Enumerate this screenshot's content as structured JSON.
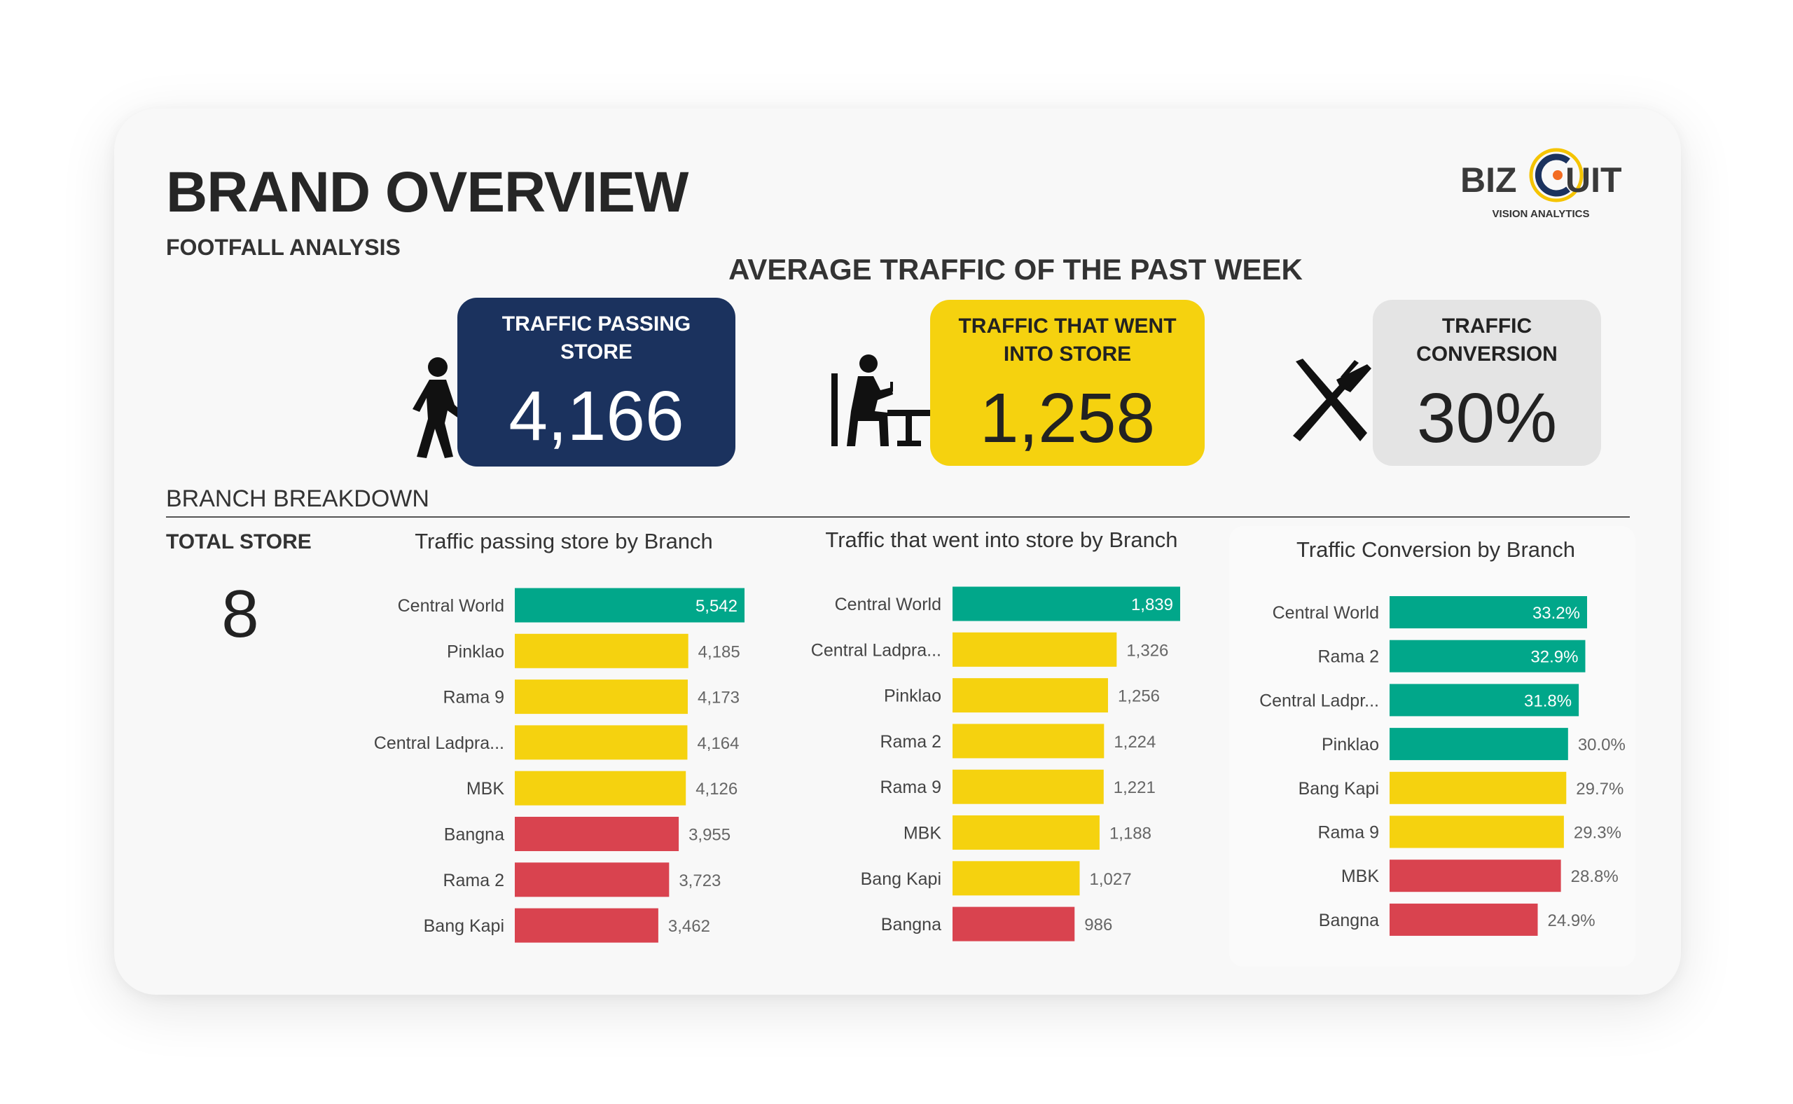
{
  "header": {
    "title": "BRAND OVERVIEW",
    "subtitle": "FOOTFALL ANALYSIS",
    "logo": {
      "text": "BIZCUIT",
      "tagline": "VISION ANALYTICS"
    }
  },
  "kpis": {
    "heading": "AVERAGE TRAFFIC OF THE PAST WEEK",
    "items": [
      {
        "label": "TRAFFIC PASSING STORE",
        "value": "4,166",
        "icon": "walking-person-icon",
        "color": "#1b325e"
      },
      {
        "label": "TRAFFIC THAT WENT INTO STORE",
        "value": "1,258",
        "icon": "seated-diner-icon",
        "color": "#f5d20f"
      },
      {
        "label": "TRAFFIC CONVERSION",
        "value": "30%",
        "icon": "knife-fork-icon",
        "color": "#e4e4e4"
      }
    ]
  },
  "breakdown": {
    "heading": "BRANCH BREAKDOWN",
    "total_store_label": "TOTAL STORE",
    "total_store_value": "8"
  },
  "colors": {
    "green": "#01a78a",
    "yellow": "#f5d20f",
    "red": "#d9434f",
    "value_label": "#666666"
  },
  "chart_data": [
    {
      "type": "bar",
      "orientation": "horizontal",
      "title": "Traffic passing store by Branch",
      "categories": [
        "Central World",
        "Pinklao",
        "Rama 9",
        "Central Ladpra...",
        "MBK",
        "Bangna",
        "Rama 2",
        "Bang Kapi"
      ],
      "values": [
        5542,
        4185,
        4173,
        4164,
        4126,
        3955,
        3723,
        3462
      ],
      "labels": [
        "5,542",
        "4,185",
        "4,173",
        "4,164",
        "4,126",
        "3,955",
        "3,723",
        "3,462"
      ],
      "bar_colors": [
        "green",
        "yellow",
        "yellow",
        "yellow",
        "yellow",
        "red",
        "red",
        "red"
      ],
      "xlim": [
        0,
        5542
      ],
      "grid": false
    },
    {
      "type": "bar",
      "orientation": "horizontal",
      "title": "Traffic that went into store by Branch",
      "categories": [
        "Central World",
        "Central Ladpra...",
        "Pinklao",
        "Rama 2",
        "Rama 9",
        "MBK",
        "Bang Kapi",
        "Bangna"
      ],
      "values": [
        1839,
        1326,
        1256,
        1224,
        1221,
        1188,
        1027,
        986
      ],
      "labels": [
        "1,839",
        "1,326",
        "1,256",
        "1,224",
        "1,221",
        "1,188",
        "1,027",
        "986"
      ],
      "bar_colors": [
        "green",
        "yellow",
        "yellow",
        "yellow",
        "yellow",
        "yellow",
        "yellow",
        "red"
      ],
      "xlim": [
        0,
        1839
      ],
      "grid": false
    },
    {
      "type": "bar",
      "orientation": "horizontal",
      "title": "Traffic Conversion by Branch",
      "categories": [
        "Central World",
        "Rama 2",
        "Central Ladpr...",
        "Pinklao",
        "Bang Kapi",
        "Rama 9",
        "MBK",
        "Bangna"
      ],
      "values": [
        33.2,
        32.9,
        31.8,
        30.0,
        29.7,
        29.3,
        28.8,
        24.9
      ],
      "labels": [
        "33.2%",
        "32.9%",
        "31.8%",
        "30.0%",
        "29.7%",
        "29.3%",
        "28.8%",
        "24.9%"
      ],
      "bar_colors": [
        "green",
        "green",
        "green",
        "green",
        "yellow",
        "yellow",
        "red",
        "red"
      ],
      "xlim": [
        0,
        33.2
      ],
      "grid": false
    }
  ]
}
